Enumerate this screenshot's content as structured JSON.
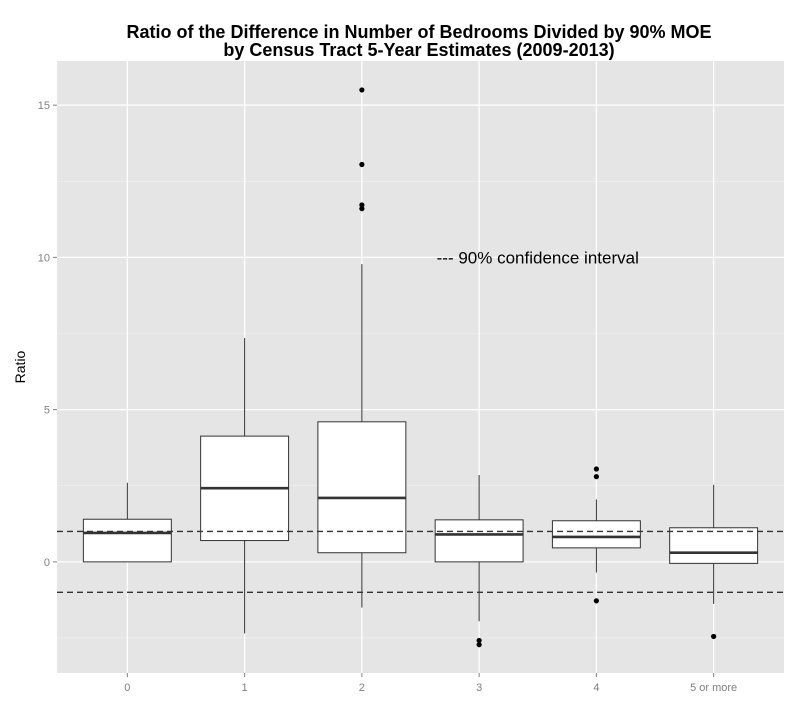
{
  "chart_data": {
    "type": "box",
    "title_line1": "Ratio of the Difference in Number of Bedrooms Divided by 90% MOE",
    "title_line2": "by Census Tract 5-Year Estimates (2009-2013)",
    "ylabel": "Ratio",
    "xlabel": "",
    "categories": [
      "0",
      "1",
      "2",
      "3",
      "4",
      "5 or more"
    ],
    "ylim": [
      -3.65,
      16.45
    ],
    "yticks": [
      0,
      5,
      10,
      15
    ],
    "grid": true,
    "boxes": [
      {
        "category": "0",
        "whisker_low": 0.0,
        "q1": 0.0,
        "median": 0.95,
        "q3": 1.4,
        "whisker_high": 2.6,
        "outliers": []
      },
      {
        "category": "1",
        "whisker_low": -2.35,
        "q1": 0.7,
        "median": 2.42,
        "q3": 4.13,
        "whisker_high": 7.35,
        "outliers": []
      },
      {
        "category": "2",
        "whisker_low": -1.5,
        "q1": 0.3,
        "median": 2.1,
        "q3": 4.6,
        "whisker_high": 9.78,
        "outliers": [
          11.6,
          11.72,
          13.05,
          15.5
        ]
      },
      {
        "category": "3",
        "whisker_low": -1.95,
        "q1": 0.0,
        "median": 0.9,
        "q3": 1.38,
        "whisker_high": 2.85,
        "outliers": [
          -2.58,
          -2.72
        ]
      },
      {
        "category": "4",
        "whisker_low": -0.35,
        "q1": 0.46,
        "median": 0.82,
        "q3": 1.35,
        "whisker_high": 2.05,
        "outliers": [
          3.05,
          2.8,
          -1.28
        ]
      },
      {
        "category": "5 or more",
        "whisker_low": -1.38,
        "q1": -0.05,
        "median": 0.3,
        "q3": 1.12,
        "whisker_high": 2.53,
        "outliers": [
          -2.45
        ]
      }
    ],
    "reference_lines": [
      1,
      -1
    ],
    "annotation": "--- 90% confidence interval",
    "annotation_pos": {
      "category": "3.5",
      "y": 10
    }
  }
}
